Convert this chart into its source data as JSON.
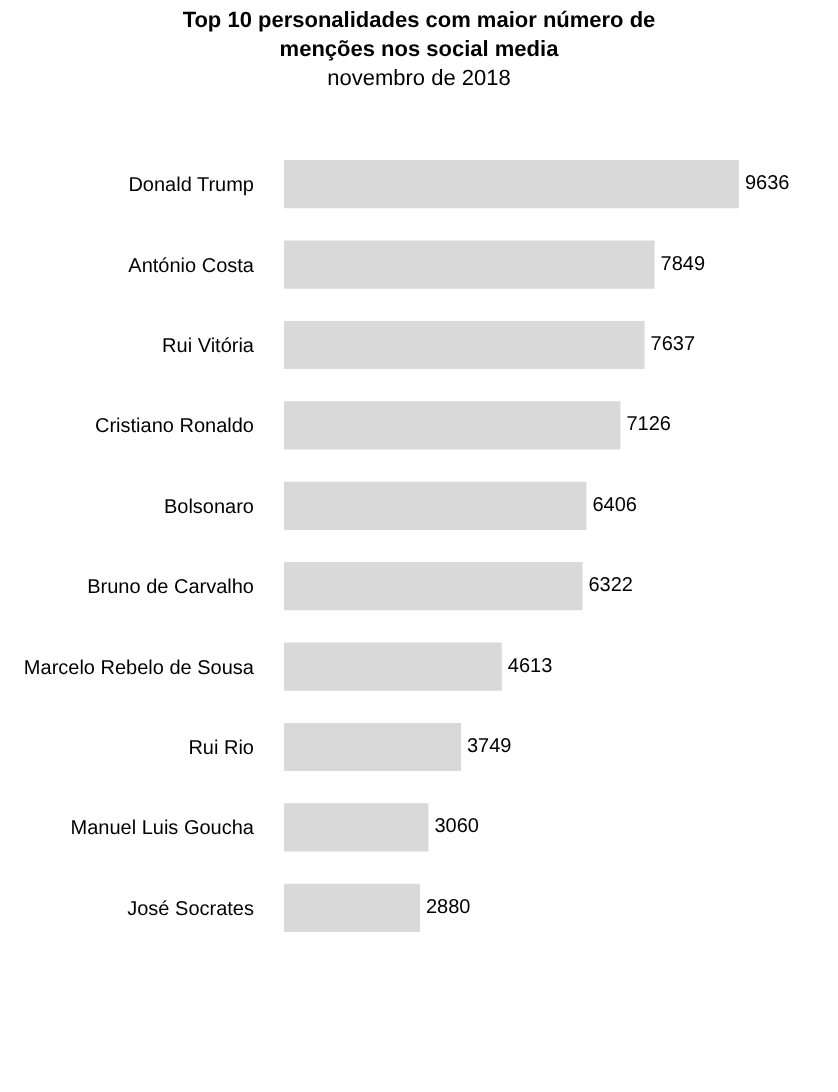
{
  "chart_data": {
    "type": "bar",
    "orientation": "horizontal",
    "title": "Top 10 personalidades com maior número de menções nos social media",
    "subtitle": "novembro de 2018",
    "categories": [
      "Donald Trump",
      "António Costa",
      "Rui Vitória",
      "Cristiano Ronaldo",
      "Bolsonaro",
      "Bruno de Carvalho",
      "Marcelo Rebelo de Sousa",
      "Rui Rio",
      "Manuel Luis Goucha",
      "José Socrates"
    ],
    "values": [
      9636,
      7849,
      7637,
      7126,
      6406,
      6322,
      4613,
      3749,
      3060,
      2880
    ],
    "color": "#d9d9d9",
    "data_labels": true,
    "tick_labels": "y"
  }
}
